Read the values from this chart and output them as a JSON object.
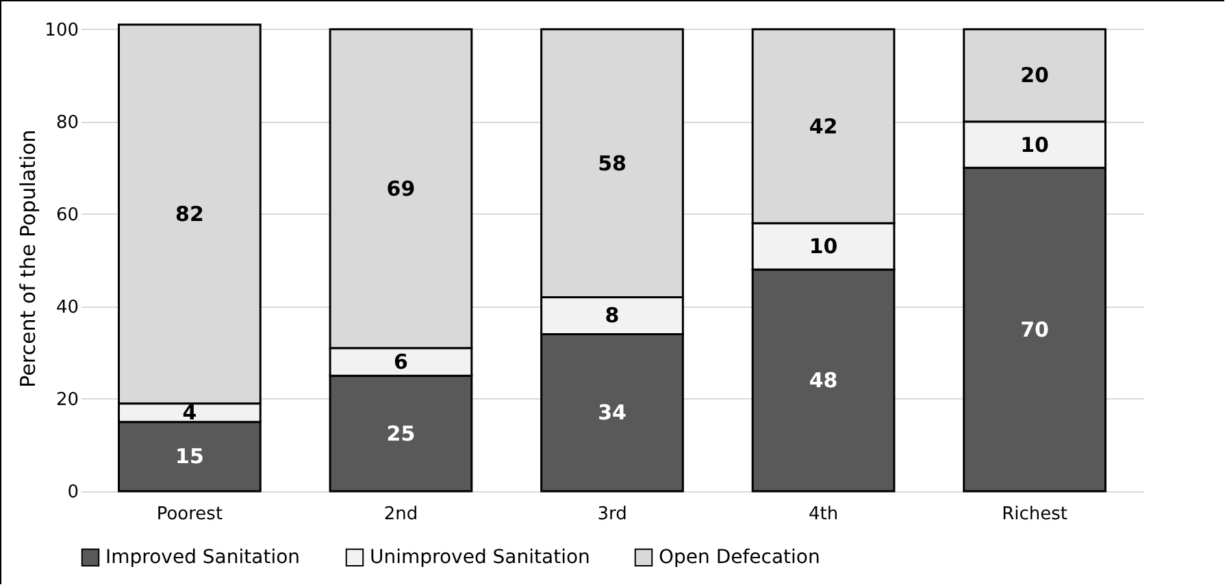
{
  "chart_data": {
    "type": "bar",
    "stacked": true,
    "ylabel": "Percent of the Population",
    "categories": [
      "Poorest",
      "2nd",
      "3rd",
      "4th",
      "Richest"
    ],
    "series": [
      {
        "name": "Improved Sanitation",
        "color": "#595959",
        "values": [
          15,
          25,
          34,
          48,
          70
        ]
      },
      {
        "name": "Unimproved Sanitation",
        "color": "#f2f2f2",
        "values": [
          4,
          6,
          8,
          10,
          10
        ]
      },
      {
        "name": "Open Defecation",
        "color": "#d9d9d9",
        "values": [
          82,
          69,
          58,
          42,
          20
        ]
      }
    ],
    "ylim": [
      0,
      101
    ],
    "yticks": [
      0,
      20,
      40,
      60,
      80,
      100
    ],
    "grid": "y",
    "legend": "bottom",
    "data_labels": true
  }
}
